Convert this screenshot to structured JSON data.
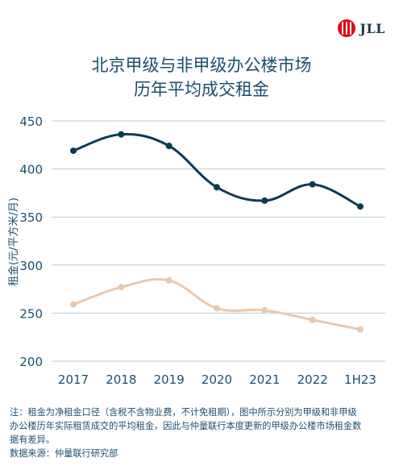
{
  "logo": {
    "text": "JLL"
  },
  "title": {
    "line1": "北京甲级与非甲级办公楼市场",
    "line2": "历年平均成交租金"
  },
  "chart_data": {
    "type": "line",
    "categories": [
      "2017",
      "2018",
      "2019",
      "2020",
      "2021",
      "2022",
      "1H23"
    ],
    "series": [
      {
        "name": "",
        "color": "#0e3a53",
        "values": [
          419,
          436,
          424,
          381,
          367,
          384,
          361
        ]
      },
      {
        "name": "",
        "color": "#e8c8ae",
        "values": [
          259,
          277,
          284,
          255,
          253,
          243,
          233
        ]
      }
    ],
    "ylabel": "租金(元/平方米/月)",
    "ylim": [
      200,
      450
    ],
    "yticks": [
      200,
      250,
      300,
      350,
      400,
      450
    ],
    "grid": true,
    "legend": "none"
  },
  "notes": {
    "line1": "注：租金为净租金口径（含税不含物业费，不计免租期），图中所示分别为甲级和非甲级",
    "line2": "办公楼历年实际租赁成交的平均租金，因此与仲量联行本度更新的甲级办公楼市场租金数",
    "line3": "据有差异。",
    "source": "数据来源：仲量联行研究部"
  },
  "colors": {
    "title": "#1b4f6e",
    "grid": "#b8c9d6",
    "axis_text": "#1b4f6e",
    "logo_red": "#e30613"
  }
}
